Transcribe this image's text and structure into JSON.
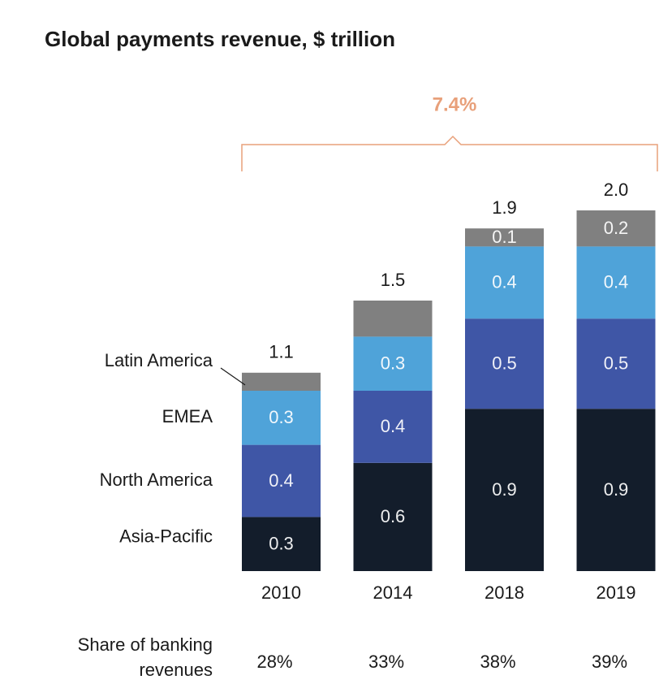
{
  "chart_data": {
    "type": "stacked_bar",
    "title": "Global payments revenue, $ trillion",
    "annotation": "7.4%",
    "annotation_color": "#e8a07a",
    "categories": [
      "2010",
      "2014",
      "2018",
      "2019"
    ],
    "series": [
      {
        "name": "Asia-Pacific",
        "color": "#131d2b",
        "values": [
          0.3,
          0.6,
          0.9,
          0.9
        ]
      },
      {
        "name": "North America",
        "color": "#3f56a6",
        "values": [
          0.4,
          0.4,
          0.5,
          0.5
        ]
      },
      {
        "name": "EMEA",
        "color": "#4fa3d9",
        "values": [
          0.3,
          0.3,
          0.4,
          0.4
        ]
      },
      {
        "name": "Latin America",
        "color": "#808080",
        "values": [
          0.1,
          0.2,
          0.1,
          0.2
        ],
        "value_labels": [
          null,
          null,
          "0.1",
          "0.2"
        ]
      }
    ],
    "totals": [
      1.1,
      1.5,
      1.9,
      2.0
    ],
    "total_labels": [
      "1.1",
      "1.5",
      "1.9",
      "2.0"
    ],
    "ylim": [
      0,
      2.0
    ],
    "share_title": [
      "Share of banking",
      "revenues"
    ],
    "share_values": [
      28,
      33,
      38,
      39
    ],
    "share_labels": [
      "28%",
      "33%",
      "38%",
      "39%"
    ]
  }
}
